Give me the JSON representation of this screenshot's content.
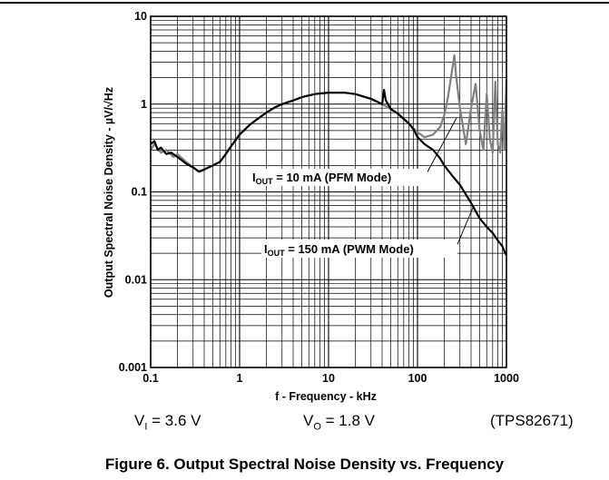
{
  "chart_data": {
    "type": "line",
    "xlabel": "f - Frequency - kHz",
    "ylabel": "Output Spectral Noise Density - µV/√Hz",
    "xscale": "log",
    "yscale": "log",
    "xlim": [
      0.1,
      1000
    ],
    "ylim": [
      0.001,
      10
    ],
    "x_ticks": [
      {
        "value": 0.1,
        "label": "0.1"
      },
      {
        "value": 1,
        "label": "1"
      },
      {
        "value": 10,
        "label": "10"
      },
      {
        "value": 100,
        "label": "100"
      },
      {
        "value": 1000,
        "label": "1000"
      }
    ],
    "y_ticks": [
      {
        "value": 0.001,
        "label": "0.001"
      },
      {
        "value": 0.01,
        "label": "0.01"
      },
      {
        "value": 0.1,
        "label": "0.1"
      },
      {
        "value": 1,
        "label": "1"
      },
      {
        "value": 10,
        "label": "10"
      }
    ],
    "grid": true,
    "series": [
      {
        "name": "PFM",
        "color": "#808080",
        "x": [
          0.1,
          0.11,
          0.13,
          0.15,
          0.18,
          0.2,
          0.25,
          0.3,
          0.35,
          0.4,
          0.5,
          0.6,
          0.7,
          0.8,
          1,
          1.3,
          1.5,
          2,
          2.5,
          3,
          4,
          5,
          7,
          10,
          15,
          20,
          30,
          40,
          50,
          60,
          70,
          80,
          90,
          100,
          120,
          150,
          180,
          200,
          220,
          250,
          260,
          270,
          300,
          350,
          400,
          450,
          500,
          550,
          600,
          650,
          700,
          750,
          800,
          850,
          900,
          950,
          1000
        ],
        "y": [
          0.3,
          0.35,
          0.28,
          0.3,
          0.25,
          0.27,
          0.22,
          0.19,
          0.17,
          0.18,
          0.2,
          0.22,
          0.27,
          0.33,
          0.45,
          0.58,
          0.65,
          0.8,
          0.92,
          1.0,
          1.1,
          1.2,
          1.3,
          1.35,
          1.35,
          1.3,
          1.15,
          1.0,
          0.88,
          0.78,
          0.68,
          0.6,
          0.53,
          0.48,
          0.42,
          0.45,
          0.55,
          0.75,
          1.2,
          2.8,
          3.6,
          2.2,
          0.9,
          0.35,
          0.9,
          1.7,
          0.5,
          0.3,
          1.3,
          0.4,
          0.28,
          1.8,
          0.35,
          0.28,
          0.85,
          0.3,
          1.9
        ]
      },
      {
        "name": "PWM",
        "color": "#000000",
        "x": [
          0.1,
          0.11,
          0.12,
          0.13,
          0.15,
          0.17,
          0.2,
          0.25,
          0.3,
          0.35,
          0.4,
          0.5,
          0.6,
          0.7,
          0.8,
          1,
          1.3,
          1.5,
          2,
          2.5,
          3,
          4,
          5,
          7,
          10,
          15,
          20,
          30,
          40,
          42,
          44,
          50,
          60,
          70,
          80,
          90,
          100,
          120,
          150,
          180,
          200,
          250,
          300,
          400,
          500,
          600,
          700,
          800,
          900,
          950,
          1000
        ],
        "y": [
          0.35,
          0.38,
          0.3,
          0.32,
          0.27,
          0.28,
          0.25,
          0.21,
          0.19,
          0.17,
          0.18,
          0.2,
          0.22,
          0.27,
          0.33,
          0.45,
          0.58,
          0.65,
          0.8,
          0.92,
          1.0,
          1.1,
          1.2,
          1.3,
          1.35,
          1.35,
          1.3,
          1.15,
          1.0,
          1.45,
          1.1,
          0.88,
          0.78,
          0.68,
          0.6,
          0.52,
          0.42,
          0.35,
          0.3,
          0.24,
          0.2,
          0.15,
          0.12,
          0.075,
          0.05,
          0.04,
          0.034,
          0.028,
          0.024,
          0.021,
          0.019
        ]
      }
    ],
    "annotations": [
      {
        "main": "I",
        "sub": "OUT",
        "rest": " = 10 mA (PFM Mode)"
      },
      {
        "main": "I",
        "sub": "OUT",
        "rest": " = 150 mA (PWM Mode)"
      }
    ]
  },
  "conditions": {
    "vi_main": "V",
    "vi_sub": "I",
    "vi_rest": " = 3.6 V",
    "vo_main": "V",
    "vo_sub": "O",
    "vo_rest": " = 1.8 V",
    "part": "(TPS82671)"
  },
  "caption": "Figure 6. Output Spectral Noise Density vs. Frequency"
}
